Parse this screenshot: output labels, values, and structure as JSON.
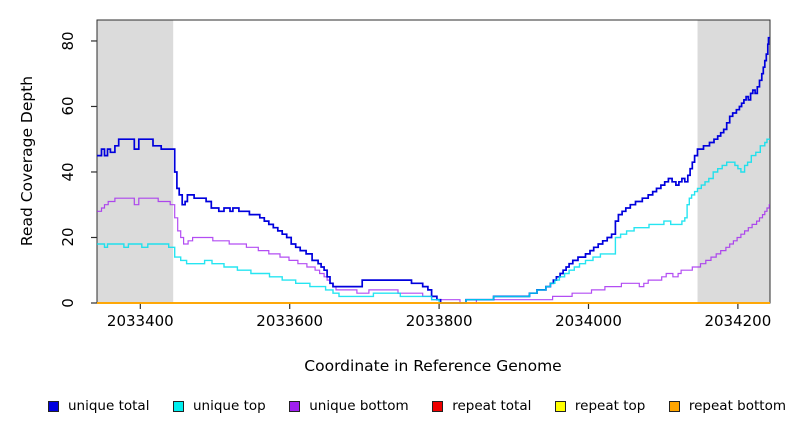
{
  "chart_data": {
    "type": "line",
    "line_style": "step",
    "title": "",
    "xlabel": "Coordinate in Reference Genome",
    "ylabel": "Read Coverage Depth",
    "xlim": [
      2033342,
      2034243
    ],
    "ylim": [
      0,
      86.4
    ],
    "x_ticks": [
      2033400,
      2033600,
      2033800,
      2034000,
      2034200
    ],
    "y_ticks": [
      0,
      20,
      40,
      60,
      80
    ],
    "grid": false,
    "legend_position": "bottom",
    "background_color": "#FFFFFF",
    "band_color": "#DBDBDB",
    "box_color": "#2E2E2E",
    "shaded_regions": [
      {
        "x0": 2033342,
        "x1": 2033444
      },
      {
        "x0": 2034146,
        "x1": 2034243
      }
    ],
    "series": [
      {
        "name": "repeat total",
        "color": "#EE0000",
        "width": 1.4,
        "opacity": 1,
        "points": [
          [
            2033342,
            0
          ],
          [
            2034243,
            0
          ]
        ]
      },
      {
        "name": "repeat top",
        "color": "#FFFF00",
        "width": 1.4,
        "opacity": 1,
        "points": [
          [
            2033342,
            0
          ],
          [
            2034243,
            0
          ]
        ]
      },
      {
        "name": "unique bottom",
        "color": "#A020F0",
        "width": 1.2,
        "opacity": 0.8,
        "points": [
          [
            2033342,
            28
          ],
          [
            2033348,
            29
          ],
          [
            2033352,
            30
          ],
          [
            2033357,
            31
          ],
          [
            2033366,
            32
          ],
          [
            2033392,
            30
          ],
          [
            2033398,
            32
          ],
          [
            2033424,
            31
          ],
          [
            2033440,
            30
          ],
          [
            2033446,
            26
          ],
          [
            2033450,
            22
          ],
          [
            2033454,
            20
          ],
          [
            2033458,
            18
          ],
          [
            2033464,
            19
          ],
          [
            2033470,
            20
          ],
          [
            2033497,
            19
          ],
          [
            2033519,
            18
          ],
          [
            2033542,
            17
          ],
          [
            2033558,
            16
          ],
          [
            2033572,
            15
          ],
          [
            2033587,
            14
          ],
          [
            2033599,
            13
          ],
          [
            2033611,
            12
          ],
          [
            2033623,
            11
          ],
          [
            2033634,
            10
          ],
          [
            2033640,
            9
          ],
          [
            2033646,
            8
          ],
          [
            2033650,
            7
          ],
          [
            2033654,
            6
          ],
          [
            2033658,
            5
          ],
          [
            2033662,
            4
          ],
          [
            2033690,
            3
          ],
          [
            2033706,
            4
          ],
          [
            2033745,
            3
          ],
          [
            2033778,
            2
          ],
          [
            2033790,
            1
          ],
          [
            2033828,
            0
          ],
          [
            2033850,
            1
          ],
          [
            2033952,
            2
          ],
          [
            2033978,
            3
          ],
          [
            2034004,
            4
          ],
          [
            2034022,
            5
          ],
          [
            2034044,
            6
          ],
          [
            2034068,
            5
          ],
          [
            2034074,
            6
          ],
          [
            2034080,
            7
          ],
          [
            2034098,
            8
          ],
          [
            2034104,
            9
          ],
          [
            2034113,
            8
          ],
          [
            2034120,
            9
          ],
          [
            2034124,
            10
          ],
          [
            2034139,
            11
          ],
          [
            2034150,
            12
          ],
          [
            2034157,
            13
          ],
          [
            2034164,
            14
          ],
          [
            2034171,
            15
          ],
          [
            2034177,
            16
          ],
          [
            2034184,
            17
          ],
          [
            2034189,
            18
          ],
          [
            2034194,
            19
          ],
          [
            2034199,
            20
          ],
          [
            2034204,
            21
          ],
          [
            2034209,
            22
          ],
          [
            2034214,
            23
          ],
          [
            2034219,
            24
          ],
          [
            2034225,
            25
          ],
          [
            2034229,
            26
          ],
          [
            2034233,
            27
          ],
          [
            2034236,
            28
          ],
          [
            2034239,
            29
          ],
          [
            2034242,
            30
          ],
          [
            2034243,
            30
          ]
        ]
      },
      {
        "name": "unique total",
        "color": "#0000DD",
        "width": 1.7,
        "opacity": 1,
        "points": [
          [
            2033342,
            45
          ],
          [
            2033348,
            47
          ],
          [
            2033352,
            45
          ],
          [
            2033356,
            47
          ],
          [
            2033360,
            46
          ],
          [
            2033366,
            48
          ],
          [
            2033371,
            50
          ],
          [
            2033392,
            47
          ],
          [
            2033398,
            50
          ],
          [
            2033417,
            48
          ],
          [
            2033428,
            47
          ],
          [
            2033444,
            47
          ],
          [
            2033446,
            40
          ],
          [
            2033449,
            35
          ],
          [
            2033452,
            33
          ],
          [
            2033456,
            30
          ],
          [
            2033460,
            31
          ],
          [
            2033463,
            33
          ],
          [
            2033472,
            32
          ],
          [
            2033488,
            31
          ],
          [
            2033495,
            29
          ],
          [
            2033505,
            28
          ],
          [
            2033512,
            29
          ],
          [
            2033520,
            28
          ],
          [
            2033524,
            29
          ],
          [
            2033532,
            28
          ],
          [
            2033546,
            27
          ],
          [
            2033560,
            26
          ],
          [
            2033566,
            25
          ],
          [
            2033572,
            24
          ],
          [
            2033578,
            23
          ],
          [
            2033584,
            22
          ],
          [
            2033590,
            21
          ],
          [
            2033596,
            20
          ],
          [
            2033602,
            18
          ],
          [
            2033608,
            17
          ],
          [
            2033614,
            16
          ],
          [
            2033622,
            15
          ],
          [
            2033630,
            13
          ],
          [
            2033638,
            12
          ],
          [
            2033642,
            11
          ],
          [
            2033646,
            10
          ],
          [
            2033650,
            8
          ],
          [
            2033654,
            6
          ],
          [
            2033658,
            5
          ],
          [
            2033697,
            7
          ],
          [
            2033763,
            6
          ],
          [
            2033778,
            5
          ],
          [
            2033785,
            4
          ],
          [
            2033790,
            2
          ],
          [
            2033797,
            1
          ],
          [
            2033802,
            0
          ],
          [
            2033836,
            1
          ],
          [
            2033873,
            2
          ],
          [
            2033921,
            3
          ],
          [
            2033931,
            4
          ],
          [
            2033943,
            5
          ],
          [
            2033949,
            6
          ],
          [
            2033953,
            7
          ],
          [
            2033957,
            8
          ],
          [
            2033962,
            9
          ],
          [
            2033966,
            10
          ],
          [
            2033970,
            11
          ],
          [
            2033974,
            12
          ],
          [
            2033979,
            13
          ],
          [
            2033986,
            14
          ],
          [
            2033996,
            15
          ],
          [
            2034002,
            16
          ],
          [
            2034007,
            17
          ],
          [
            2034013,
            18
          ],
          [
            2034019,
            19
          ],
          [
            2034025,
            20
          ],
          [
            2034031,
            21
          ],
          [
            2034036,
            25
          ],
          [
            2034040,
            27
          ],
          [
            2034045,
            28
          ],
          [
            2034050,
            29
          ],
          [
            2034056,
            30
          ],
          [
            2034063,
            31
          ],
          [
            2034072,
            32
          ],
          [
            2034080,
            33
          ],
          [
            2034086,
            34
          ],
          [
            2034091,
            35
          ],
          [
            2034097,
            36
          ],
          [
            2034102,
            37
          ],
          [
            2034107,
            38
          ],
          [
            2034112,
            37
          ],
          [
            2034117,
            36
          ],
          [
            2034121,
            37
          ],
          [
            2034125,
            38
          ],
          [
            2034129,
            37
          ],
          [
            2034133,
            39
          ],
          [
            2034136,
            41
          ],
          [
            2034139,
            43
          ],
          [
            2034142,
            45
          ],
          [
            2034146,
            47
          ],
          [
            2034154,
            48
          ],
          [
            2034162,
            49
          ],
          [
            2034168,
            50
          ],
          [
            2034173,
            51
          ],
          [
            2034177,
            52
          ],
          [
            2034181,
            53
          ],
          [
            2034185,
            55
          ],
          [
            2034189,
            57
          ],
          [
            2034193,
            58
          ],
          [
            2034198,
            59
          ],
          [
            2034202,
            60
          ],
          [
            2034205,
            61
          ],
          [
            2034208,
            62
          ],
          [
            2034211,
            63
          ],
          [
            2034214,
            62
          ],
          [
            2034217,
            64
          ],
          [
            2034220,
            65
          ],
          [
            2034223,
            64
          ],
          [
            2034226,
            66
          ],
          [
            2034229,
            68
          ],
          [
            2034232,
            70
          ],
          [
            2034234,
            72
          ],
          [
            2034236,
            74
          ],
          [
            2034238,
            76
          ],
          [
            2034240,
            79
          ],
          [
            2034241,
            81
          ],
          [
            2034243,
            81
          ]
        ]
      },
      {
        "name": "unique top",
        "color": "#00E0EE",
        "width": 1.4,
        "opacity": 0.85,
        "points": [
          [
            2033342,
            18
          ],
          [
            2033352,
            17
          ],
          [
            2033356,
            18
          ],
          [
            2033378,
            17
          ],
          [
            2033384,
            18
          ],
          [
            2033402,
            17
          ],
          [
            2033410,
            18
          ],
          [
            2033438,
            17
          ],
          [
            2033446,
            14
          ],
          [
            2033454,
            13
          ],
          [
            2033462,
            12
          ],
          [
            2033486,
            13
          ],
          [
            2033496,
            12
          ],
          [
            2033512,
            11
          ],
          [
            2033530,
            10
          ],
          [
            2033548,
            9
          ],
          [
            2033573,
            8
          ],
          [
            2033590,
            7
          ],
          [
            2033608,
            6
          ],
          [
            2033627,
            5
          ],
          [
            2033648,
            4
          ],
          [
            2033658,
            3
          ],
          [
            2033666,
            2
          ],
          [
            2033712,
            3
          ],
          [
            2033748,
            2
          ],
          [
            2033790,
            1
          ],
          [
            2033800,
            0
          ],
          [
            2033836,
            1
          ],
          [
            2033873,
            2
          ],
          [
            2033921,
            3
          ],
          [
            2033931,
            4
          ],
          [
            2033943,
            5
          ],
          [
            2033949,
            6
          ],
          [
            2033955,
            7
          ],
          [
            2033961,
            8
          ],
          [
            2033968,
            9
          ],
          [
            2033974,
            10
          ],
          [
            2033981,
            11
          ],
          [
            2033988,
            12
          ],
          [
            2033996,
            13
          ],
          [
            2034006,
            14
          ],
          [
            2034016,
            15
          ],
          [
            2034036,
            20
          ],
          [
            2034043,
            21
          ],
          [
            2034051,
            22
          ],
          [
            2034061,
            23
          ],
          [
            2034081,
            24
          ],
          [
            2034101,
            25
          ],
          [
            2034110,
            24
          ],
          [
            2034125,
            25
          ],
          [
            2034129,
            26
          ],
          [
            2034132,
            30
          ],
          [
            2034135,
            32
          ],
          [
            2034138,
            33
          ],
          [
            2034142,
            34
          ],
          [
            2034146,
            35
          ],
          [
            2034151,
            36
          ],
          [
            2034156,
            37
          ],
          [
            2034161,
            38
          ],
          [
            2034167,
            40
          ],
          [
            2034173,
            41
          ],
          [
            2034179,
            42
          ],
          [
            2034185,
            43
          ],
          [
            2034196,
            42
          ],
          [
            2034200,
            41
          ],
          [
            2034204,
            40
          ],
          [
            2034209,
            42
          ],
          [
            2034213,
            43
          ],
          [
            2034218,
            45
          ],
          [
            2034224,
            46
          ],
          [
            2034230,
            48
          ],
          [
            2034236,
            49
          ],
          [
            2034239,
            50
          ],
          [
            2034243,
            50
          ]
        ]
      },
      {
        "name": "repeat bottom",
        "color": "#FFA500",
        "width": 1.7,
        "opacity": 1,
        "points": [
          [
            2033342,
            0
          ],
          [
            2034243,
            0
          ]
        ]
      }
    ],
    "legend": [
      {
        "label": "unique total",
        "color": "#0000DD"
      },
      {
        "label": "unique top",
        "color": "#00EEEE"
      },
      {
        "label": "unique bottom",
        "color": "#A020F0"
      },
      {
        "label": "repeat total",
        "color": "#EE0000"
      },
      {
        "label": "repeat top",
        "color": "#FFFF00"
      },
      {
        "label": "repeat bottom",
        "color": "#FFA500"
      }
    ]
  }
}
